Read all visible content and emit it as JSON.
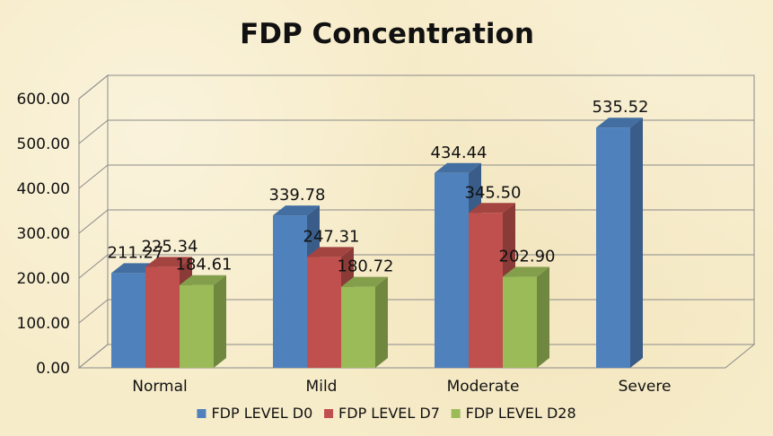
{
  "chart_data": {
    "type": "bar",
    "title": "FDP Concentration",
    "xlabel": "",
    "ylabel": "",
    "categories": [
      "Normal",
      "Mild",
      "Moderate",
      "Severe"
    ],
    "series": [
      {
        "name": "FDP LEVEL D0",
        "values": [
          211.27,
          339.78,
          434.44,
          535.52
        ],
        "labels": [
          "211.27",
          "339.78",
          "434.44",
          "535.52"
        ],
        "color": "#4f81bd"
      },
      {
        "name": "FDP LEVEL D7",
        "values": [
          225.34,
          247.31,
          345.5,
          null
        ],
        "labels": [
          "225.34",
          "247.31",
          "345.50",
          ""
        ],
        "color": "#c0504d"
      },
      {
        "name": "FDP LEVEL D28",
        "values": [
          184.61,
          180.72,
          202.9,
          null
        ],
        "labels": [
          "184.61",
          "180.72",
          "202.90",
          ""
        ],
        "color": "#9bbb59"
      }
    ],
    "ylim": [
      0,
      600
    ],
    "yticks": [
      "0.00",
      "100.00",
      "200.00",
      "300.00",
      "400.00",
      "500.00",
      "600.00"
    ],
    "ytick_values": [
      0,
      100,
      200,
      300,
      400,
      500,
      600
    ],
    "grid": true,
    "legend_position": "bottom",
    "style": "3d-clustered-column"
  }
}
